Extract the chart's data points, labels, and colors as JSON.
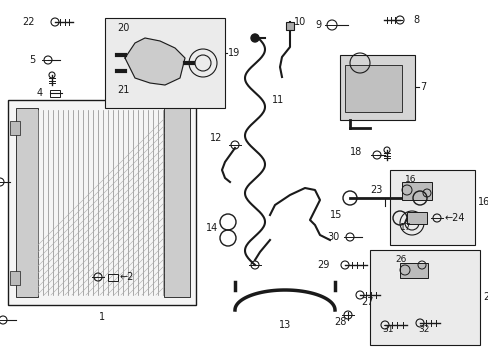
{
  "background_color": "#ffffff",
  "fig_width": 4.89,
  "fig_height": 3.6,
  "dpi": 100,
  "line_color": "#1a1a1a",
  "fill_color": "#e8e8e8",
  "box_fill": "#e0e0e0"
}
